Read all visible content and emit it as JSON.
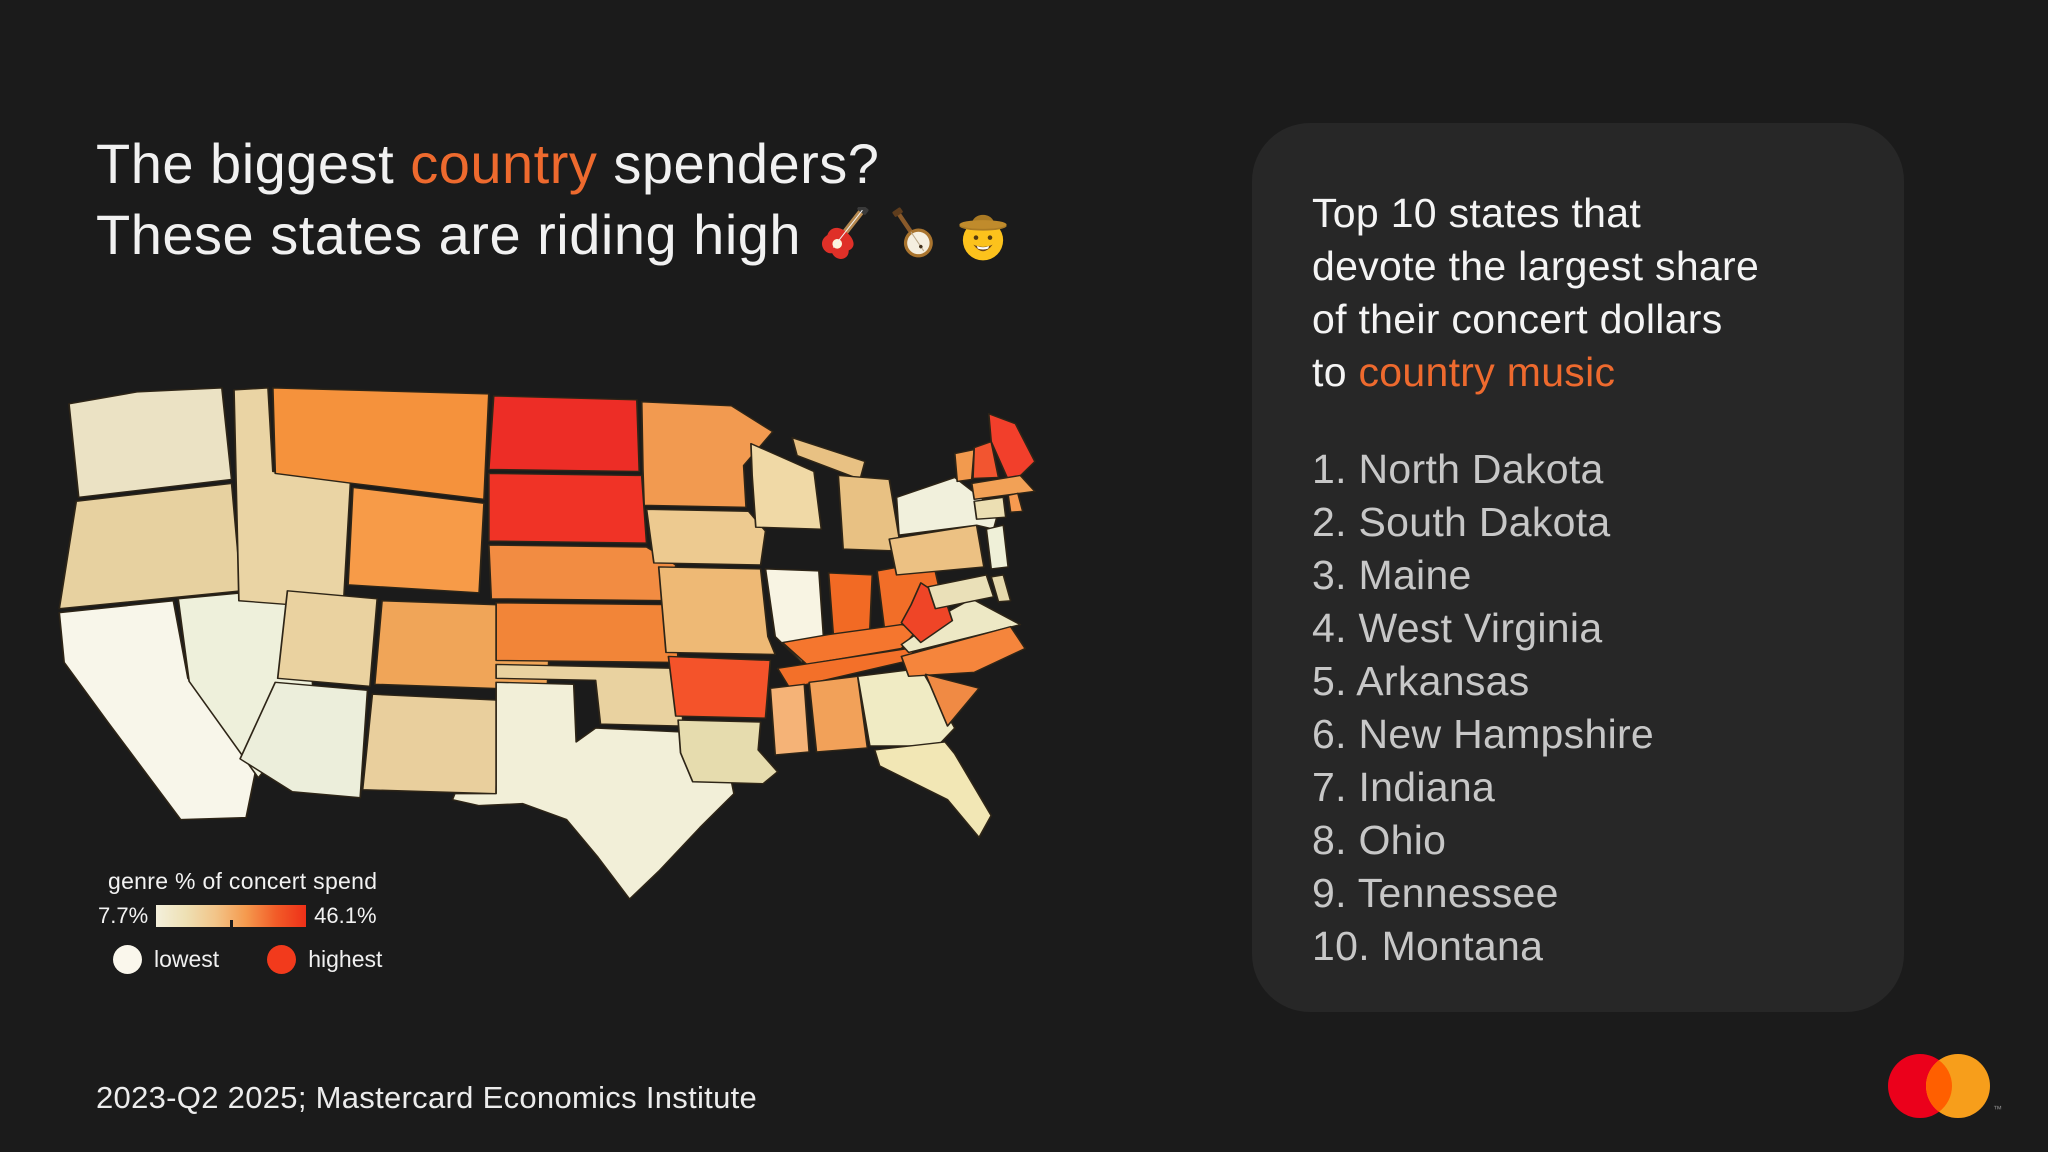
{
  "theme": {
    "page_bg": "#1b1b1b",
    "panel_bg": "#272727",
    "accent": "#ee6a2e",
    "title_color": "#f1f1f1",
    "list_color": "#c7c7c7",
    "map_stroke": "#2e2517"
  },
  "title": {
    "line1_pre": "The biggest ",
    "line1_accent": "country",
    "line1_post": " spenders?",
    "line2": "These states are riding high",
    "emoji_icons": [
      "electric-guitar",
      "banjo",
      "cowboy-hat-face"
    ]
  },
  "legend": {
    "label": "genre % of concert spend",
    "min_label": "7.7%",
    "max_label": "46.1%",
    "lowest_label": "lowest",
    "highest_label": "highest",
    "lowest_color": "#faf7ec",
    "highest_color": "#f23a1c",
    "gradient": [
      "#f4f0dc",
      "#eee0b4",
      "#f2c488",
      "#f59a4e",
      "#f25c28",
      "#ee3018"
    ]
  },
  "panel": {
    "header_lines": [
      "Top 10 states that",
      "devote the largest share",
      "of their concert dollars"
    ],
    "header_last_pre": "to ",
    "header_accent": "country music",
    "items": [
      "1. North Dakota",
      "2. South Dakota",
      "3. Maine",
      "4. West Virginia",
      "5. Arkansas",
      "6. New Hampshire",
      "7. Indiana",
      "8. Ohio",
      "9. Tennessee",
      "10. Montana"
    ]
  },
  "footer": {
    "text": "2023-Q2 2025; Mastercard Economics Institute"
  },
  "logo": {
    "name": "mastercard-logo",
    "left_color": "#eb001b",
    "right_color": "#f79e1b",
    "overlap_color": "#ff5f00",
    "tm": "™"
  },
  "chart_data": {
    "type": "heatmap",
    "title": "genre % of concert spend (country music share of concert spend by state)",
    "value_range": [
      7.7,
      46.1
    ],
    "value_unit": "%",
    "legend_min": "7.7%",
    "legend_max": "46.1%",
    "top_10_states": [
      "North Dakota",
      "South Dakota",
      "Maine",
      "West Virginia",
      "Arkansas",
      "New Hampshire",
      "Indiana",
      "Ohio",
      "Tennessee",
      "Montana"
    ],
    "states": [
      {
        "id": "WA",
        "name": "Washington",
        "color": "#ebe2c4"
      },
      {
        "id": "OR",
        "name": "Oregon",
        "color": "#e7d1a0"
      },
      {
        "id": "CA",
        "name": "California",
        "color": "#f8f6ea"
      },
      {
        "id": "NV",
        "name": "Nevada",
        "color": "#eef0db"
      },
      {
        "id": "ID",
        "name": "Idaho",
        "color": "#ead4a4"
      },
      {
        "id": "MT",
        "name": "Montana",
        "color": "#f5923c"
      },
      {
        "id": "WY",
        "name": "Wyoming",
        "color": "#f79b48"
      },
      {
        "id": "UT",
        "name": "Utah",
        "color": "#ead2a0"
      },
      {
        "id": "CO",
        "name": "Colorado",
        "color": "#f0a558"
      },
      {
        "id": "AZ",
        "name": "Arizona",
        "color": "#eceedb"
      },
      {
        "id": "NM",
        "name": "New Mexico",
        "color": "#e9cf9d"
      },
      {
        "id": "ND",
        "name": "North Dakota",
        "color": "#ed2d26"
      },
      {
        "id": "SD",
        "name": "South Dakota",
        "color": "#f03326"
      },
      {
        "id": "NE",
        "name": "Nebraska",
        "color": "#f28c42"
      },
      {
        "id": "KS",
        "name": "Kansas",
        "color": "#f28538"
      },
      {
        "id": "OK",
        "name": "Oklahoma",
        "color": "#e9d2a0"
      },
      {
        "id": "TX",
        "name": "Texas",
        "color": "#f2efd8"
      },
      {
        "id": "MN",
        "name": "Minnesota",
        "color": "#f29a50"
      },
      {
        "id": "IA",
        "name": "Iowa",
        "color": "#edca90"
      },
      {
        "id": "WI",
        "name": "Wisconsin",
        "color": "#f0d9a6"
      },
      {
        "id": "MIU",
        "name": "Michigan (Upper Peninsula)",
        "color": "#e8c183"
      },
      {
        "id": "MI",
        "name": "Michigan",
        "color": "#e8c183"
      },
      {
        "id": "IL",
        "name": "Illinois",
        "color": "#f8f4e3"
      },
      {
        "id": "IN",
        "name": "Indiana",
        "color": "#f26a24"
      },
      {
        "id": "OH",
        "name": "Ohio",
        "color": "#f26e28"
      },
      {
        "id": "MO",
        "name": "Missouri",
        "color": "#eeb975"
      },
      {
        "id": "KY",
        "name": "Kentucky",
        "color": "#f5762e"
      },
      {
        "id": "TN",
        "name": "Tennessee",
        "color": "#f37029"
      },
      {
        "id": "AR",
        "name": "Arkansas",
        "color": "#f4532a"
      },
      {
        "id": "LA",
        "name": "Louisiana",
        "color": "#e6dcae"
      },
      {
        "id": "MS",
        "name": "Mississippi",
        "color": "#f5b377"
      },
      {
        "id": "AL",
        "name": "Alabama",
        "color": "#f2a159"
      },
      {
        "id": "GA",
        "name": "Georgia",
        "color": "#f0ebc4"
      },
      {
        "id": "FL",
        "name": "Florida",
        "color": "#f2e7b5"
      },
      {
        "id": "VA",
        "name": "Virginia",
        "color": "#ede8c5"
      },
      {
        "id": "NC",
        "name": "North Carolina",
        "color": "#f5853c"
      },
      {
        "id": "SC",
        "name": "South Carolina",
        "color": "#f08a44"
      },
      {
        "id": "WV",
        "name": "West Virginia",
        "color": "#ef4527"
      },
      {
        "id": "MD",
        "name": "Maryland",
        "color": "#eae0b8"
      },
      {
        "id": "DE",
        "name": "Delaware",
        "color": "#e6d9ac"
      },
      {
        "id": "PA",
        "name": "Pennsylvania",
        "color": "#ecc183"
      },
      {
        "id": "NY",
        "name": "New York",
        "color": "#f1f0dc"
      },
      {
        "id": "NJ",
        "name": "New Jersey",
        "color": "#eff0d8"
      },
      {
        "id": "VT",
        "name": "Vermont",
        "color": "#f29a4e"
      },
      {
        "id": "NH",
        "name": "New Hampshire",
        "color": "#f25530"
      },
      {
        "id": "ME",
        "name": "Maine",
        "color": "#f23f2b"
      },
      {
        "id": "MA",
        "name": "Massachusetts",
        "color": "#f2a156"
      },
      {
        "id": "CT",
        "name": "Connecticut",
        "color": "#ecdfb3"
      },
      {
        "id": "RI",
        "name": "Rhode Island",
        "color": "#f79a50"
      }
    ]
  }
}
